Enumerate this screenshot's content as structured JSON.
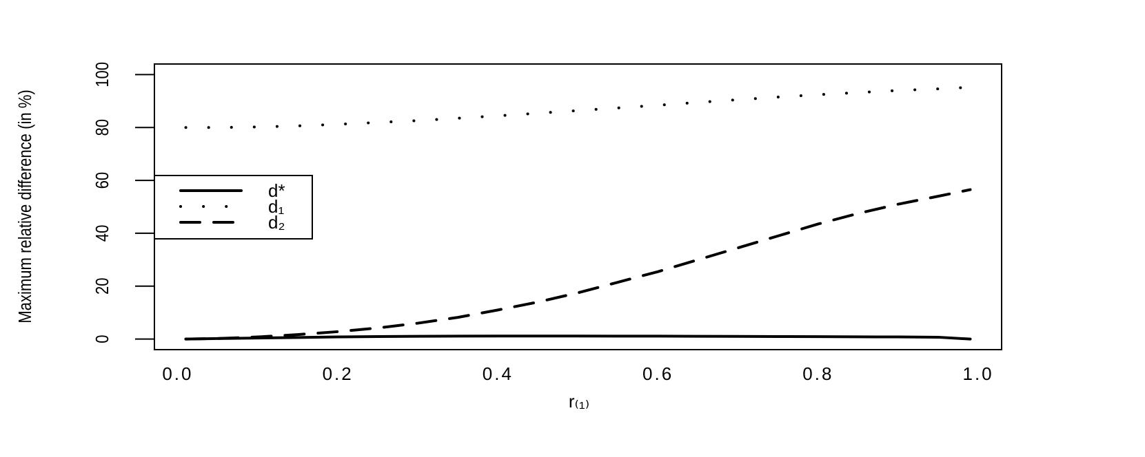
{
  "chart_data": {
    "type": "line",
    "xlabel": "r₍₁₎",
    "ylabel": "Maximum relative difference (in %)",
    "x": [
      0.01,
      0.05,
      0.1,
      0.15,
      0.2,
      0.25,
      0.3,
      0.35,
      0.4,
      0.45,
      0.5,
      0.55,
      0.6,
      0.65,
      0.7,
      0.75,
      0.8,
      0.85,
      0.9,
      0.95,
      0.99
    ],
    "series": [
      {
        "name": "d*",
        "color": "#000000",
        "linestyle": "solid",
        "values": [
          0,
          0.2,
          0.4,
          0.6,
          0.8,
          0.95,
          1.05,
          1.1,
          1.15,
          1.15,
          1.15,
          1.1,
          1.1,
          1.05,
          1,
          0.95,
          0.9,
          0.85,
          0.8,
          0.7,
          0
        ]
      },
      {
        "name": "d₁",
        "color": "#000000",
        "linestyle": "dotted",
        "values": [
          80,
          80,
          80.2,
          80.6,
          81.2,
          81.9,
          82.6,
          83.5,
          84.4,
          85.4,
          86.4,
          87.4,
          88.4,
          89.5,
          90.5,
          91.5,
          92.4,
          93.2,
          94,
          94.6,
          95.2
        ]
      },
      {
        "name": "d₂",
        "color": "#000000",
        "linestyle": "dashed",
        "values": [
          0,
          0.2,
          0.8,
          1.7,
          2.8,
          4.2,
          6,
          8.2,
          11,
          14,
          17.5,
          21.5,
          25.5,
          30,
          34.5,
          39,
          43.5,
          47.5,
          51,
          54,
          56.5
        ]
      }
    ],
    "xlim": [
      -0.0292,
      1.0292
    ],
    "xticks": [
      {
        "value": 0,
        "label": "0.0"
      },
      0.2,
      0.4,
      0.6,
      0.8,
      {
        "value": 1,
        "label": "1.0"
      }
    ],
    "ylim": [
      -4,
      104
    ],
    "yticks": [
      0,
      20,
      40,
      60,
      80,
      100
    ],
    "legend": "left"
  }
}
